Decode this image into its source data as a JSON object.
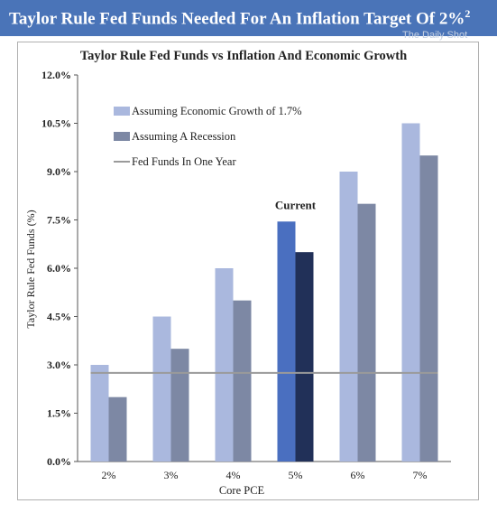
{
  "banner": {
    "title": "Taylor Rule Fed Funds Needed For An Inflation Target Of 2%",
    "superscript": "2",
    "watermark": "The Daily Shot"
  },
  "colors": {
    "banner": "#4a74b8",
    "growth_bar": "#aab8de",
    "recession_bar": "#7d88a4",
    "current_growth_bar": "#4a6fc0",
    "current_recession_bar": "#213058",
    "fed_funds_line": "#9a9a9a"
  },
  "chart_data": {
    "type": "bar",
    "title": "Taylor Rule Fed Funds vs Inflation And Economic Growth",
    "xlabel": "Core PCE",
    "ylabel": "Taylor Rule Fed Funds (%)",
    "categories": [
      "2%",
      "3%",
      "4%",
      "5%",
      "6%",
      "7%"
    ],
    "ylim": [
      0,
      12
    ],
    "yticks": [
      0,
      1.5,
      3,
      4.5,
      6,
      7.5,
      9,
      10.5,
      12
    ],
    "ytick_labels": [
      "0.0%",
      "1.5%",
      "3.0%",
      "4.5%",
      "6.0%",
      "7.5%",
      "9.0%",
      "10.5%",
      "12.0%"
    ],
    "series": [
      {
        "name": "Assuming Economic Growth of 1.7%",
        "values": [
          3.0,
          4.5,
          6.0,
          7.45,
          9.0,
          10.5
        ]
      },
      {
        "name": "Assuming A Recession",
        "values": [
          2.0,
          3.5,
          5.0,
          6.5,
          8.0,
          9.5
        ]
      }
    ],
    "reference_line": {
      "name": "Fed Funds In One Year",
      "value": 2.75
    },
    "highlight": {
      "category_index": 3,
      "label": "Current"
    },
    "legend_position": "top-left",
    "grid": false
  }
}
